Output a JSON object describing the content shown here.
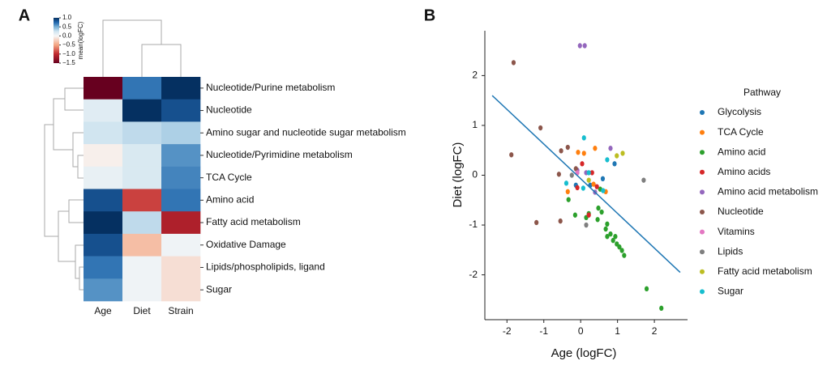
{
  "chart_data": [
    {
      "type": "heatmap",
      "panel_label": "A",
      "rows": [
        "Nucleotide/Purine metabolism",
        "Nucleotide",
        "Amino sugar and nucleotide sugar metabolism",
        "Nucleotide/Pyrimidine metabolism",
        "TCA Cycle",
        "Amino acid",
        "Fatty acid metabolism",
        "Oxidative Damage",
        "Lipids/phospholipids, ligand",
        "Sugar"
      ],
      "columns": [
        "Age",
        "Diet",
        "Strain"
      ],
      "values": [
        [
          -1.5,
          0.7,
          1.0
        ],
        [
          0.15,
          1.0,
          0.85
        ],
        [
          0.25,
          0.3,
          0.35
        ],
        [
          -0.05,
          0.2,
          0.6
        ],
        [
          0.1,
          0.2,
          0.65
        ],
        [
          0.85,
          -0.9,
          0.7
        ],
        [
          1.0,
          0.3,
          -1.1
        ],
        [
          0.85,
          -0.35,
          0.05
        ],
        [
          0.7,
          0.05,
          -0.15
        ],
        [
          0.6,
          0.05,
          -0.15
        ]
      ],
      "colorbar_label": "mean(logFC)",
      "clim": [
        -1.5,
        1.0
      ],
      "cticks": [
        {
          "value": 1.0,
          "label": "1.0"
        },
        {
          "value": 0.5,
          "label": "0.5"
        },
        {
          "value": 0.0,
          "label": "0.0"
        },
        {
          "value": -0.5,
          "label": "−0.5"
        },
        {
          "value": -1.0,
          "label": "−1.0"
        },
        {
          "value": -1.5,
          "label": "−1.5"
        }
      ],
      "colorscale": [
        [
          -1.5,
          "#67001f"
        ],
        [
          -1.0,
          "#c0282e"
        ],
        [
          -0.5,
          "#f4a582"
        ],
        [
          0,
          "#f7f7f7"
        ],
        [
          0.25,
          "#d1e5f0"
        ],
        [
          0.5,
          "#78b0d6"
        ],
        [
          0.75,
          "#2166ac"
        ],
        [
          1.0,
          "#053061"
        ]
      ]
    },
    {
      "type": "scatter",
      "panel_label": "B",
      "x_label": "Age (logFC)",
      "y_label": "Diet (logFC)",
      "legend_title": "Pathway",
      "xlim": [
        -2.6,
        2.9
      ],
      "ylim": [
        -2.9,
        2.9
      ],
      "xticks": [
        -2,
        -1,
        0,
        1,
        2
      ],
      "yticks": [
        -2,
        -1,
        0,
        1,
        2
      ],
      "trend_line": {
        "color": "#1f77b4",
        "x": [
          -2.4,
          2.7
        ],
        "y": [
          1.6,
          -1.95
        ]
      },
      "series": [
        {
          "name": "Glycolysis",
          "color": "#1f77b4",
          "x": [
            -0.13,
            0.92,
            0.6,
            0.26
          ],
          "y": [
            -0.2,
            0.23,
            -0.07,
            -0.2
          ]
        },
        {
          "name": "TCA Cycle",
          "color": "#ff7f0e",
          "x": [
            -0.07,
            0.09,
            -0.35,
            0.39,
            0.35,
            0.68
          ],
          "y": [
            0.46,
            0.44,
            -0.33,
            0.54,
            -0.18,
            -0.33
          ]
        },
        {
          "name": "Amino acid",
          "color": "#2ca02c",
          "x": [
            -0.33,
            -0.15,
            0.15,
            0.22,
            0.48,
            0.57,
            0.46,
            0.72,
            0.68,
            0.81,
            0.72,
            0.88,
            0.94,
            0.98,
            1.05,
            1.12,
            1.18,
            1.79,
            2.19,
            0.53
          ],
          "y": [
            -0.49,
            -0.8,
            -0.85,
            -0.77,
            -0.66,
            -0.74,
            -0.89,
            -0.98,
            -1.08,
            -1.18,
            -1.23,
            -1.31,
            -1.23,
            -1.38,
            -1.44,
            -1.51,
            -1.61,
            -2.28,
            -2.67,
            -0.28
          ]
        },
        {
          "name": "Amino acids",
          "color": "#d62728",
          "x": [
            0.04,
            -0.09,
            0.22,
            0.31,
            0.44
          ],
          "y": [
            0.23,
            -0.25,
            -0.8,
            0.05,
            -0.23
          ]
        },
        {
          "name": "Amino acid metabolism",
          "color": "#9467bd",
          "x": [
            -0.02,
            0.11,
            0.81,
            0.15,
            -0.09,
            0.39
          ],
          "y": [
            2.6,
            2.6,
            0.54,
            0.05,
            0.1,
            -0.34
          ]
        },
        {
          "name": "Nucleotide",
          "color": "#8c564b",
          "x": [
            -1.82,
            -1.88,
            -1.09,
            -1.2,
            -0.55,
            -0.59,
            -0.35,
            -0.53,
            -0.13
          ],
          "y": [
            2.26,
            0.41,
            0.95,
            -0.95,
            -0.92,
            0.02,
            0.56,
            0.49,
            0.13
          ]
        },
        {
          "name": "Vitamins",
          "color": "#e377c2",
          "x": [
            -0.09
          ],
          "y": [
            0.05
          ]
        },
        {
          "name": "Lipids",
          "color": "#7f7f7f",
          "x": [
            1.71,
            0.15,
            -0.24
          ],
          "y": [
            -0.1,
            -1.0,
            0
          ]
        },
        {
          "name": "Fatty acid metabolism",
          "color": "#bcbd22",
          "x": [
            0.98,
            1.14,
            0.22
          ],
          "y": [
            0.39,
            0.44,
            -0.1
          ]
        },
        {
          "name": "Sugar",
          "color": "#17becf",
          "x": [
            0.09,
            0.72,
            0.22,
            0.61,
            0.07,
            -0.39
          ],
          "y": [
            0.75,
            0.31,
            0.05,
            -0.31,
            -0.26,
            -0.16
          ]
        }
      ]
    }
  ]
}
